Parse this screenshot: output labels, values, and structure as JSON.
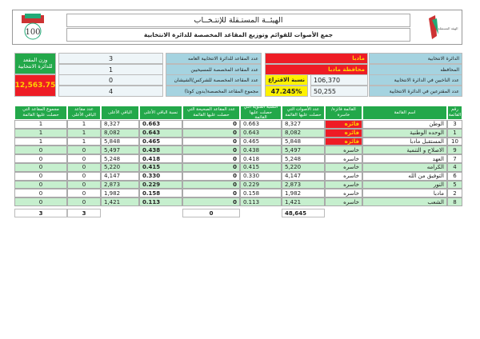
{
  "header": {
    "title": "الهيئــة المستـقلة للإنتـخــاب",
    "subtitle": "جمع الأصوات للقوائم وتوزيع المقاعد المخصصة للدائرة الانتخابية",
    "logo_left_text": "100",
    "logo_right_text": "الهيئة المستقلة للانتخاب"
  },
  "info": {
    "district_label": "الدائرة الانتخابية",
    "district": "مادبا",
    "governorate_label": "المحافظه",
    "governorate": "محافظة مادبا",
    "eligible_label": "عدد الناخبين في الدائرة الانتخابية",
    "eligible": "106,370",
    "voters_label": "عدد المقترعين في الدائرة الانتخابية",
    "voters": "50,255",
    "turnout_label": "نسبة الاقتراع",
    "turnout": "47.245%",
    "general_seats_label": "عدد المقاعد للدائرة الانتخابية العامه",
    "general_seats": "3",
    "christian_seats_label": "عدد المقاعد المخصصة للمسيحيين",
    "christian_seats": "1",
    "circassian_seats_label": "عدد المقاعد المخصصة للشركس/الشيشان",
    "circassian_seats": "0",
    "total_seats_label": "مجموع المقاعد المخصصة(بدون كوتا)",
    "total_seats": "4",
    "seat_weight_label": "وزن المقعد للدائرة الانتخابية",
    "seat_weight": "12,563.75"
  },
  "table": {
    "headers": [
      "مجموع المقاعد التي حصلت عليها القائمة",
      "عدد مقاعد الباقي الأعلى",
      "الباقي الأعلى",
      "نسبة الباقي الأعلى",
      "عدد المقاعد الصحيحة التي حصلت عليها القائمة",
      "النسبة المئوية التي حصلت عليها القائمة",
      "عدد الأصوات التي حصلت عليها القائمة",
      "القائمة فائزة/خاسرة",
      "اسم القائمة",
      "رقم القائمة"
    ],
    "rows": [
      [
        "1",
        "1",
        "8,327",
        "0.663",
        "0",
        "0.663",
        "8,327",
        "فائزه",
        "الوطن",
        "3"
      ],
      [
        "1",
        "1",
        "8,082",
        "0.643",
        "0",
        "0.643",
        "8,082",
        "فائزه",
        "الوحده الوطنية",
        "1"
      ],
      [
        "1",
        "1",
        "5,848",
        "0.465",
        "0",
        "0.465",
        "5,848",
        "فائزه",
        "المستقبل مادبا",
        "10"
      ],
      [
        "0",
        "0",
        "5,497",
        "0.438",
        "0",
        "0.438",
        "5,497",
        "خاسره",
        "الاصلاح و التنمية",
        "9"
      ],
      [
        "0",
        "0",
        "5,248",
        "0.418",
        "0",
        "0.418",
        "5,248",
        "خاسره",
        "العهد",
        "7"
      ],
      [
        "0",
        "0",
        "5,220",
        "0.415",
        "0",
        "0.415",
        "5,220",
        "خاسره",
        "الكرامه",
        "4"
      ],
      [
        "0",
        "0",
        "4,147",
        "0.330",
        "0",
        "0.330",
        "4,147",
        "خاسره",
        "التوفيق من الله",
        "6"
      ],
      [
        "0",
        "0",
        "2,873",
        "0.229",
        "0",
        "0.229",
        "2,873",
        "خاسره",
        "النور",
        "5"
      ],
      [
        "0",
        "0",
        "1,982",
        "0.158",
        "0",
        "0.158",
        "1,982",
        "خاسره",
        "مادبا",
        "2"
      ],
      [
        "0",
        "0",
        "1,421",
        "0.113",
        "0",
        "0.113",
        "1,421",
        "خاسره",
        "الشعب",
        "8"
      ]
    ],
    "totals": {
      "total_seats": "3",
      "remainder_seats": "3",
      "valid_seats": "0",
      "votes": "48,645"
    }
  },
  "colors": {
    "header_green": "#23a84a",
    "label_blue": "#a5d3e0",
    "winner_red": "#ee1c25",
    "highlight_yellow": "#fff200",
    "row_alt": "#c6efce"
  }
}
